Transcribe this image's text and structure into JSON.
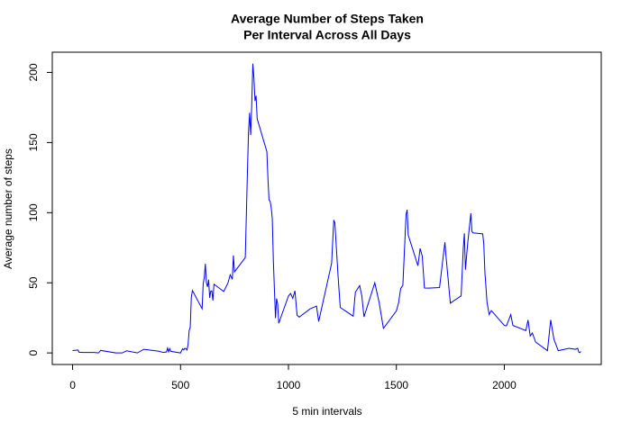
{
  "chart_data": {
    "type": "line",
    "title": [
      "Average Number of Steps Taken",
      "Per Interval Across All Days"
    ],
    "x_label": "5 min intervals",
    "y_label": "Average number of steps",
    "xlim": [
      -94.2,
      2449.2
    ],
    "ylim": [
      -8.25,
      214.4
    ],
    "xticks": [
      0,
      500,
      1000,
      1500,
      2000
    ],
    "yticks": [
      0,
      50,
      100,
      150,
      200
    ],
    "series": [
      {
        "color": "#0000ff",
        "x": [
          0,
          25,
          30,
          50,
          100,
          120,
          130,
          200,
          230,
          250,
          300,
          330,
          400,
          420,
          435,
          440,
          445,
          450,
          455,
          500,
          505,
          510,
          515,
          520,
          525,
          530,
          535,
          540,
          545,
          550,
          555,
          600,
          605,
          610,
          615,
          620,
          625,
          630,
          635,
          640,
          645,
          650,
          655,
          700,
          720,
          730,
          740,
          745,
          750,
          800,
          810,
          815,
          820,
          825,
          830,
          835,
          840,
          845,
          850,
          855,
          900,
          905,
          910,
          915,
          920,
          925,
          930,
          935,
          940,
          945,
          950,
          955,
          1000,
          1010,
          1020,
          1030,
          1040,
          1050,
          1100,
          1130,
          1140,
          1200,
          1210,
          1215,
          1230,
          1240,
          1300,
          1310,
          1330,
          1340,
          1350,
          1400,
          1420,
          1440,
          1500,
          1510,
          1520,
          1530,
          1545,
          1550,
          1555,
          1600,
          1610,
          1620,
          1630,
          1650,
          1700,
          1720,
          1725,
          1730,
          1750,
          1800,
          1810,
          1815,
          1820,
          1830,
          1845,
          1850,
          1855,
          1900,
          1905,
          1910,
          1920,
          1930,
          1940,
          2000,
          2010,
          2030,
          2040,
          2100,
          2110,
          2120,
          2130,
          2145,
          2200,
          2215,
          2230,
          2250,
          2300,
          2330,
          2340,
          2345,
          2350,
          2355
        ],
        "values": [
          1.7,
          2.1,
          0.5,
          0.3,
          0.3,
          0,
          1.8,
          0,
          0,
          1.5,
          0,
          2.6,
          1.2,
          0.3,
          0.7,
          3.5,
          0.8,
          3.1,
          1.1,
          0,
          1.6,
          3,
          2.2,
          3.3,
          3,
          2.1,
          6.1,
          16,
          18.3,
          39.5,
          44.5,
          31.5,
          49.3,
          53.8,
          63.5,
          50,
          47.1,
          52.2,
          39.3,
          44,
          44.2,
          37.4,
          49,
          43.8,
          49.9,
          55.7,
          52.5,
          69.5,
          57.8,
          68,
          129.4,
          157.5,
          171.2,
          155.4,
          177.3,
          206.2,
          195.9,
          179.6,
          183.4,
          167,
          143.5,
          124,
          109.1,
          108.1,
          103.7,
          96,
          66.2,
          45.2,
          24.8,
          38.8,
          35,
          21.1,
          40.6,
          42.4,
          38.9,
          44.3,
          26.9,
          25.5,
          31.4,
          33.4,
          22.4,
          63.9,
          94.8,
          92.8,
          54.5,
          32.4,
          26.2,
          43.3,
          48,
          40.5,
          25.7,
          50,
          36.1,
          17.5,
          30,
          35.5,
          46,
          48.1,
          98.7,
          102.1,
          84,
          62.1,
          74.5,
          68.9,
          46.3,
          46.2,
          46.6,
          72.7,
          78.9,
          68.9,
          35.5,
          40.7,
          74.7,
          85.3,
          59.3,
          77.4,
          99.5,
          86.6,
          85.6,
          84.9,
          77.8,
          58,
          36.1,
          27.4,
          30.2,
          19.6,
          19.3,
          27.3,
          19.6,
          15.9,
          23.5,
          12.1,
          14.2,
          7.8,
          1.6,
          23.5,
          9.75,
          1.6,
          3.3,
          2.6,
          3.3,
          0.6,
          0.2,
          1.1
        ]
      }
    ]
  }
}
